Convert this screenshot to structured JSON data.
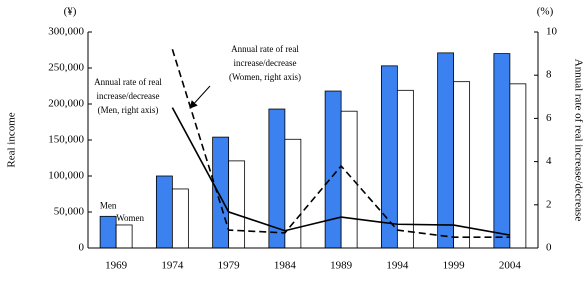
{
  "chart_data": {
    "type": "bar",
    "categories": [
      "1969",
      "1974",
      "1979",
      "1984",
      "1989",
      "1994",
      "1999",
      "2004"
    ],
    "series": [
      {
        "name": "Men",
        "type": "bar",
        "color": "#3b82f0",
        "values": [
          44000,
          100000,
          154000,
          193000,
          218000,
          253000,
          271000,
          270000
        ]
      },
      {
        "name": "Women",
        "type": "bar",
        "color": "#ffffff",
        "values": [
          32000,
          82000,
          121000,
          151000,
          190000,
          219000,
          231000,
          228000
        ]
      },
      {
        "type": "line",
        "axis": "y2",
        "color": "#000000",
        "line_style": "solid",
        "values": [
          null,
          6.5,
          1.67,
          0.8,
          1.43,
          1.1,
          1.06,
          0.6
        ]
      },
      {
        "type": "line",
        "axis": "y2",
        "color": "#000000",
        "line_style": "dashed",
        "values": [
          null,
          9.2,
          0.83,
          0.7,
          3.8,
          0.83,
          0.5,
          0.5
        ]
      }
    ],
    "ylabel": "Real income",
    "y2label": "Annual rate of real increase/decrease",
    "yunit": "(¥)",
    "y2unit": "(%)",
    "ylim": [
      0,
      300000
    ],
    "yticks": [
      0,
      {
        "value": 50000,
        "label": "50,000"
      },
      {
        "value": 100000,
        "label": "100,000"
      },
      {
        "value": 150000,
        "label": "150,000"
      },
      {
        "value": 200000,
        "label": "200,000"
      },
      {
        "value": 250000,
        "label": "250,000"
      },
      {
        "value": 300000,
        "label": "300,000"
      }
    ],
    "y2lim": [
      0,
      10
    ],
    "y2ticks": [
      0,
      2,
      4,
      6,
      8,
      10
    ],
    "annotations": [
      {
        "lines": [
          "Annual rate of real",
          "increase/decrease",
          "(Women, right axis)"
        ]
      },
      {
        "lines": [
          "Annual rate of real",
          "increase/decrease",
          "(Men, right axis)"
        ]
      }
    ]
  }
}
